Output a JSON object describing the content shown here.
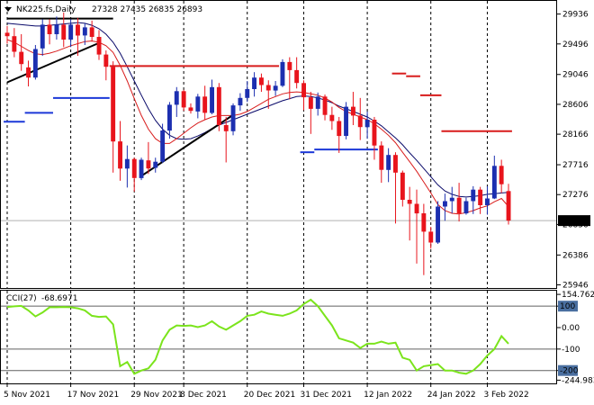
{
  "chart_data": [
    {
      "type": "candlestick",
      "header": {
        "symbol": "NK225.fs,Daily",
        "ohlc": "27328 27435 26835 26893"
      },
      "y_axis": {
        "ticks": [
          "29936",
          "29496",
          "29046",
          "28606",
          "28166",
          "27716",
          "27276",
          "26836",
          "26386",
          "25946"
        ],
        "range": [
          25900,
          30130
        ],
        "current_price": "26893"
      },
      "x_axis": {
        "labels": [
          "5 Nov 2021",
          "17 Nov 2021",
          "29 Nov 2021",
          "8 Dec 2021",
          "20 Dec 2021",
          "31 Dec 2021",
          "12 Jan 2022",
          "24 Jan 2022",
          "3 Feb 2022"
        ],
        "label_index": [
          0,
          9,
          18,
          25,
          34,
          42,
          51,
          60,
          68
        ]
      },
      "colors": {
        "up": "#1c2fb0",
        "down": "#e8141c",
        "ma_fast": "#d81c1c",
        "ma_slow": "#0a0a6a",
        "stop": "#d81c1c",
        "support": "#1c38d8",
        "trend": "#000000"
      },
      "candles": [
        [
          29660,
          29760,
          29500,
          29610
        ],
        [
          29610,
          29730,
          29300,
          29380
        ],
        [
          29380,
          29640,
          29100,
          29200
        ],
        [
          29150,
          29250,
          28870,
          29000
        ],
        [
          29000,
          29480,
          28970,
          29420
        ],
        [
          29430,
          29860,
          29320,
          29780
        ],
        [
          29780,
          29860,
          29490,
          29640
        ],
        [
          29640,
          29900,
          29560,
          29780
        ],
        [
          29780,
          29960,
          29450,
          29560
        ],
        [
          29560,
          29860,
          29450,
          29780
        ],
        [
          29780,
          29880,
          29320,
          29620
        ],
        [
          29620,
          29800,
          29480,
          29740
        ],
        [
          29740,
          29840,
          29530,
          29600
        ],
        [
          29600,
          29700,
          29260,
          29340
        ],
        [
          29340,
          29400,
          28960,
          29160
        ],
        [
          29160,
          29240,
          27600,
          28060
        ],
        [
          28060,
          28360,
          27480,
          27660
        ],
        [
          27660,
          28000,
          27380,
          27800
        ],
        [
          27800,
          27820,
          27320,
          27520
        ],
        [
          27520,
          27820,
          27490,
          27790
        ],
        [
          27780,
          28050,
          27580,
          27660
        ],
        [
          27670,
          27820,
          27600,
          27760
        ],
        [
          27760,
          28320,
          27740,
          28220
        ],
        [
          28220,
          28640,
          28100,
          28600
        ],
        [
          28600,
          28860,
          28420,
          28800
        ],
        [
          28800,
          28820,
          28510,
          28560
        ],
        [
          28560,
          28620,
          28470,
          28510
        ],
        [
          28500,
          28760,
          28400,
          28720
        ],
        [
          28720,
          28880,
          28380,
          28480
        ],
        [
          28480,
          28970,
          28460,
          28860
        ],
        [
          28860,
          28920,
          28210,
          28300
        ],
        [
          28300,
          28420,
          27750,
          28210
        ],
        [
          28210,
          28620,
          28150,
          28590
        ],
        [
          28590,
          28770,
          28510,
          28700
        ],
        [
          28700,
          28950,
          28640,
          28830
        ],
        [
          28830,
          29080,
          28720,
          29000
        ],
        [
          29000,
          29060,
          28790,
          28890
        ],
        [
          28890,
          28960,
          28540,
          28810
        ],
        [
          28810,
          28950,
          28730,
          28880
        ],
        [
          28880,
          29270,
          28860,
          29230
        ],
        [
          29230,
          29300,
          28680,
          29110
        ],
        [
          29110,
          29300,
          28840,
          28920
        ],
        [
          28920,
          28960,
          28520,
          28710
        ],
        [
          28710,
          28790,
          28170,
          28540
        ],
        [
          28540,
          28780,
          28440,
          28720
        ],
        [
          28720,
          28750,
          28370,
          28450
        ],
        [
          28450,
          28570,
          28230,
          28360
        ],
        [
          28360,
          28420,
          27890,
          28140
        ],
        [
          28140,
          28640,
          28090,
          28570
        ],
        [
          28570,
          28790,
          28300,
          28440
        ],
        [
          28440,
          28700,
          28080,
          28270
        ],
        [
          28270,
          28500,
          28100,
          28380
        ],
        [
          28380,
          28420,
          27790,
          28000
        ],
        [
          28000,
          28060,
          27450,
          27640
        ],
        [
          27640,
          27960,
          27460,
          27860
        ],
        [
          27860,
          27900,
          26850,
          27600
        ],
        [
          27600,
          27630,
          27100,
          27200
        ],
        [
          27200,
          27390,
          26600,
          27140
        ],
        [
          27140,
          27350,
          26260,
          27000
        ],
        [
          27000,
          27140,
          26090,
          26730
        ],
        [
          26730,
          26800,
          26480,
          26570
        ],
        [
          26570,
          27180,
          26550,
          27100
        ],
        [
          27100,
          27290,
          26890,
          27180
        ],
        [
          27180,
          27390,
          27000,
          27230
        ],
        [
          27230,
          27450,
          26880,
          27000
        ],
        [
          27000,
          27230,
          26980,
          27180
        ],
        [
          27180,
          27400,
          26990,
          27350
        ],
        [
          27350,
          27390,
          26990,
          27120
        ],
        [
          27120,
          27400,
          26980,
          27220
        ],
        [
          27220,
          27850,
          27210,
          27700
        ],
        [
          27700,
          27790,
          27300,
          27430
        ],
        [
          27328,
          27435,
          26835,
          26893
        ]
      ],
      "ma_fast": [
        29560,
        29520,
        29460,
        29400,
        29350,
        29340,
        29360,
        29390,
        29430,
        29470,
        29500,
        29530,
        29540,
        29520,
        29470,
        29370,
        29180,
        28950,
        28690,
        28440,
        28240,
        28100,
        28030,
        28030,
        28100,
        28180,
        28260,
        28330,
        28380,
        28420,
        28440,
        28440,
        28440,
        28460,
        28500,
        28560,
        28620,
        28680,
        28720,
        28760,
        28780,
        28790,
        28780,
        28760,
        28740,
        28700,
        28640,
        28560,
        28500,
        28460,
        28420,
        28380,
        28320,
        28240,
        28150,
        28040,
        27900,
        27760,
        27620,
        27460,
        27300,
        27130,
        27040,
        27000,
        26990,
        27010,
        27040,
        27080,
        27110,
        27170,
        27220,
        27100
      ],
      "ma_slow": [
        29800,
        29790,
        29780,
        29770,
        29760,
        29760,
        29770,
        29780,
        29790,
        29800,
        29810,
        29800,
        29770,
        29720,
        29640,
        29520,
        29360,
        29160,
        28950,
        28740,
        28540,
        28370,
        28240,
        28150,
        28100,
        28090,
        28100,
        28140,
        28190,
        28250,
        28300,
        28340,
        28380,
        28420,
        28460,
        28500,
        28540,
        28580,
        28620,
        28660,
        28690,
        28720,
        28730,
        28720,
        28700,
        28670,
        28630,
        28580,
        28540,
        28500,
        28460,
        28420,
        28360,
        28290,
        28200,
        28110,
        28010,
        27890,
        27780,
        27660,
        27540,
        27420,
        27330,
        27280,
        27250,
        27240,
        27250,
        27260,
        27280,
        27290,
        27300,
        27310
      ],
      "stop_levels": [
        {
          "from": 15,
          "to": 38,
          "value": 29170
        },
        {
          "from": 55,
          "to": 56,
          "value": 29060
        },
        {
          "from": 57,
          "to": 58,
          "value": 29020
        },
        {
          "from": 59,
          "to": 61,
          "value": 28740
        },
        {
          "from": 62,
          "to": 71,
          "value": 28210
        }
      ],
      "support_levels": [
        {
          "from": 0,
          "to": 2,
          "value": 28350
        },
        {
          "from": 3,
          "to": 6,
          "value": 28480
        },
        {
          "from": 7,
          "to": 14,
          "value": 28700
        },
        {
          "from": 42,
          "to": 43,
          "value": 27900
        },
        {
          "from": 44,
          "to": 52,
          "value": 27940
        }
      ],
      "trend_lines": [
        {
          "from": [
            0,
            28930
          ],
          "to": [
            13,
            29510
          ]
        },
        {
          "from": [
            0,
            29870
          ],
          "to": [
            15,
            29870
          ]
        },
        {
          "from": [
            19,
            27550
          ],
          "to": [
            32,
            28450
          ]
        }
      ]
    },
    {
      "type": "line",
      "name": "CCI(27) -68.6971",
      "label_name": "CCI(27)",
      "label_value": "-68.6971",
      "y_axis": {
        "range": [
          -260,
          172
        ],
        "ticks": [
          "154.7623",
          "100",
          "0.00",
          "-100",
          "-200",
          "-244.983"
        ],
        "levels": [
          100,
          -100,
          -200
        ]
      },
      "colors": {
        "line": "#7be41c",
        "level": "#606060"
      },
      "values": [
        96,
        99,
        101,
        80,
        52,
        70,
        95,
        95,
        96,
        95,
        90,
        80,
        55,
        50,
        52,
        15,
        -180,
        -160,
        -215,
        -200,
        -190,
        -150,
        -60,
        -10,
        10,
        8,
        10,
        2,
        10,
        30,
        5,
        -10,
        10,
        30,
        55,
        60,
        75,
        65,
        60,
        55,
        65,
        80,
        110,
        130,
        100,
        55,
        10,
        -50,
        -60,
        -70,
        -95,
        -75,
        -75,
        -65,
        -75,
        -70,
        -140,
        -150,
        -200,
        -180,
        -175,
        -170,
        -200,
        -200,
        -210,
        -215,
        -200,
        -170,
        -130,
        -100,
        -40,
        -75
      ]
    }
  ]
}
